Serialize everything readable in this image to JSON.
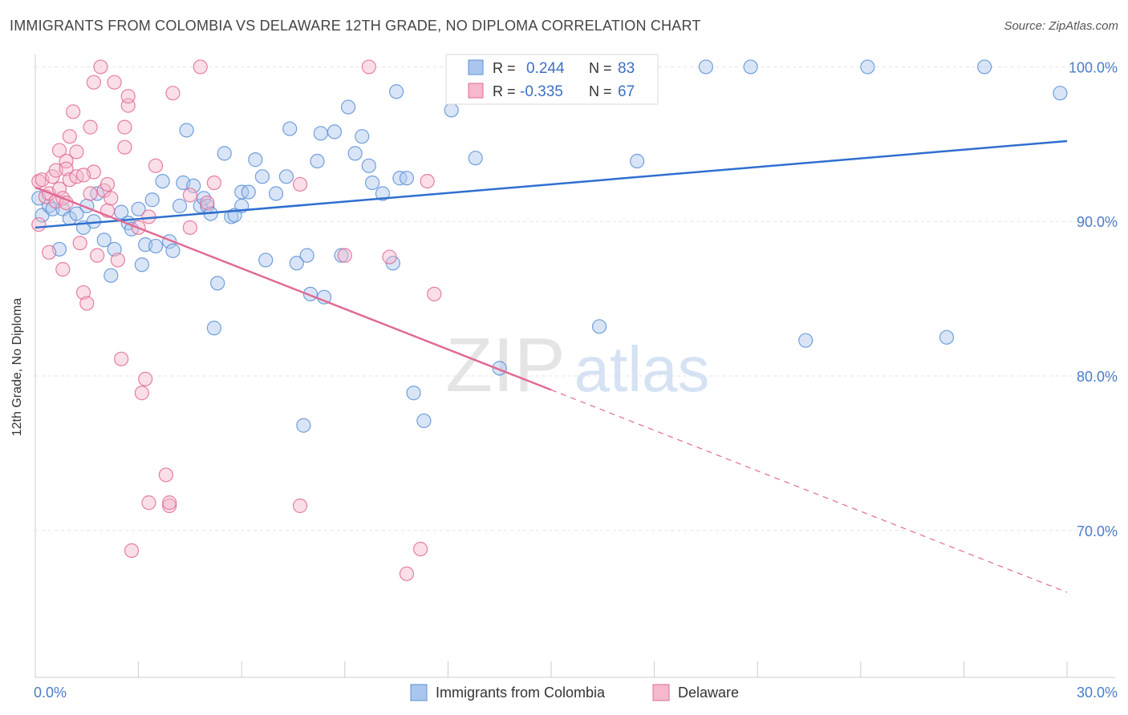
{
  "title": "IMMIGRANTS FROM COLOMBIA VS DELAWARE 12TH GRADE, NO DIPLOMA CORRELATION CHART",
  "source": "Source: ZipAtlas.com",
  "watermark": {
    "zip": "ZIP",
    "atlas": "atlas"
  },
  "colors": {
    "blue": "#5b8fd6",
    "blue_fill": "#aac6ee",
    "pink": "#e06a94",
    "pink_fill": "#f5b8cc",
    "tick_text": "#4a7cc9"
  },
  "chart_data": {
    "type": "scatter",
    "title": "IMMIGRANTS FROM COLOMBIA VS DELAWARE 12TH GRADE, NO DIPLOMA CORRELATION CHART",
    "xlabel": "",
    "ylabel": "12th Grade, No Diploma",
    "xlim": [
      0,
      30
    ],
    "ylim": [
      60.5,
      100.8
    ],
    "x_tick_labels": [
      {
        "value": 0,
        "label": "0.0%"
      },
      {
        "value": 30,
        "label": "30.0%"
      }
    ],
    "y_tick_labels": [
      {
        "value": 100,
        "label": "100.0%"
      },
      {
        "value": 90,
        "label": "90.0%"
      },
      {
        "value": 80,
        "label": "80.0%"
      },
      {
        "value": 70,
        "label": "70.0%"
      }
    ],
    "grid": true,
    "legend_position": "bottom-center",
    "stats_box": [
      {
        "r_label": "R = ",
        "r_value": "0.244",
        "n_label": "N = ",
        "n_value": "83"
      },
      {
        "r_label": "R = ",
        "r_value": "-0.335",
        "n_label": "N = ",
        "n_value": "67"
      }
    ],
    "series": [
      {
        "name": "Immigrants from Colombia",
        "color": "#5b8fd6",
        "trend": {
          "x": [
            0,
            30
          ],
          "y": [
            89.6,
            95.2
          ],
          "dashed_from": null
        },
        "points": [
          [
            0.2,
            90.4
          ],
          [
            0.4,
            91.0
          ],
          [
            0.5,
            90.8
          ],
          [
            0.7,
            88.2
          ],
          [
            0.8,
            90.8
          ],
          [
            1.0,
            90.2
          ],
          [
            1.2,
            90.5
          ],
          [
            1.4,
            89.6
          ],
          [
            1.5,
            91.0
          ],
          [
            1.7,
            90.0
          ],
          [
            1.8,
            91.8
          ],
          [
            2.0,
            88.8
          ],
          [
            2.2,
            86.5
          ],
          [
            2.3,
            88.2
          ],
          [
            2.5,
            90.6
          ],
          [
            2.7,
            89.9
          ],
          [
            2.8,
            89.5
          ],
          [
            3.0,
            90.8
          ],
          [
            3.1,
            87.2
          ],
          [
            3.2,
            88.5
          ],
          [
            3.4,
            91.4
          ],
          [
            3.5,
            88.4
          ],
          [
            3.7,
            92.6
          ],
          [
            3.9,
            88.7
          ],
          [
            4.0,
            88.1
          ],
          [
            4.2,
            91.0
          ],
          [
            4.3,
            92.5
          ],
          [
            4.4,
            95.9
          ],
          [
            4.6,
            92.3
          ],
          [
            4.8,
            91.0
          ],
          [
            4.9,
            91.5
          ],
          [
            5.0,
            91.0
          ],
          [
            5.1,
            90.5
          ],
          [
            5.2,
            83.1
          ],
          [
            5.3,
            86.0
          ],
          [
            5.5,
            94.4
          ],
          [
            5.7,
            90.3
          ],
          [
            5.8,
            90.4
          ],
          [
            6.0,
            91.0
          ],
          [
            6.0,
            91.9
          ],
          [
            6.2,
            91.9
          ],
          [
            6.4,
            94.0
          ],
          [
            6.6,
            92.9
          ],
          [
            6.7,
            87.5
          ],
          [
            7.0,
            91.8
          ],
          [
            7.3,
            92.9
          ],
          [
            7.4,
            96.0
          ],
          [
            7.6,
            87.3
          ],
          [
            7.8,
            76.8
          ],
          [
            7.9,
            87.8
          ],
          [
            8.0,
            85.3
          ],
          [
            8.2,
            93.9
          ],
          [
            8.3,
            95.7
          ],
          [
            8.4,
            85.1
          ],
          [
            8.7,
            95.8
          ],
          [
            8.9,
            87.8
          ],
          [
            9.1,
            97.4
          ],
          [
            9.3,
            94.4
          ],
          [
            9.5,
            95.5
          ],
          [
            9.7,
            93.6
          ],
          [
            9.8,
            92.5
          ],
          [
            10.1,
            91.8
          ],
          [
            10.4,
            87.3
          ],
          [
            10.5,
            98.4
          ],
          [
            10.6,
            92.8
          ],
          [
            10.8,
            92.8
          ],
          [
            11.0,
            78.9
          ],
          [
            11.3,
            77.1
          ],
          [
            12.1,
            97.2
          ],
          [
            12.8,
            94.1
          ],
          [
            13.5,
            80.5
          ],
          [
            14.8,
            99.4
          ],
          [
            15.0,
            99.9
          ],
          [
            16.4,
            83.2
          ],
          [
            17.5,
            93.9
          ],
          [
            19.5,
            100.0
          ],
          [
            20.8,
            100.0
          ],
          [
            22.4,
            82.3
          ],
          [
            24.2,
            100.0
          ],
          [
            26.5,
            82.5
          ],
          [
            27.6,
            100.0
          ],
          [
            29.8,
            98.3
          ],
          [
            0.1,
            91.5
          ]
        ]
      },
      {
        "name": "Delaware",
        "color": "#e06a94",
        "trend": {
          "x": [
            0,
            30
          ],
          "y": [
            92.2,
            66.0
          ],
          "dashed_from": 15.0
        },
        "points": [
          [
            0.1,
            89.8
          ],
          [
            0.1,
            92.6
          ],
          [
            0.2,
            92.7
          ],
          [
            0.3,
            91.6
          ],
          [
            0.4,
            91.8
          ],
          [
            0.4,
            88.0
          ],
          [
            0.5,
            92.9
          ],
          [
            0.6,
            91.3
          ],
          [
            0.6,
            93.3
          ],
          [
            0.7,
            92.1
          ],
          [
            0.7,
            94.6
          ],
          [
            0.8,
            86.9
          ],
          [
            0.8,
            91.5
          ],
          [
            0.9,
            93.9
          ],
          [
            0.9,
            93.4
          ],
          [
            1.0,
            92.7
          ],
          [
            1.0,
            95.5
          ],
          [
            1.1,
            97.1
          ],
          [
            1.2,
            94.5
          ],
          [
            1.2,
            92.9
          ],
          [
            1.3,
            88.6
          ],
          [
            1.4,
            85.4
          ],
          [
            1.5,
            84.7
          ],
          [
            1.6,
            91.8
          ],
          [
            1.6,
            96.1
          ],
          [
            1.7,
            99.0
          ],
          [
            1.7,
            93.2
          ],
          [
            1.8,
            87.8
          ],
          [
            1.9,
            100.0
          ],
          [
            2.0,
            92.0
          ],
          [
            2.1,
            90.7
          ],
          [
            2.1,
            92.4
          ],
          [
            2.2,
            91.5
          ],
          [
            2.3,
            99.0
          ],
          [
            2.4,
            87.5
          ],
          [
            2.5,
            81.1
          ],
          [
            2.6,
            94.8
          ],
          [
            2.6,
            96.1
          ],
          [
            2.7,
            97.5
          ],
          [
            2.7,
            98.1
          ],
          [
            2.8,
            68.7
          ],
          [
            3.0,
            89.6
          ],
          [
            3.1,
            78.9
          ],
          [
            3.2,
            79.8
          ],
          [
            3.3,
            90.3
          ],
          [
            3.5,
            93.6
          ],
          [
            3.8,
            73.6
          ],
          [
            3.9,
            71.6
          ],
          [
            3.9,
            71.8
          ],
          [
            3.3,
            71.8
          ],
          [
            4.0,
            98.3
          ],
          [
            4.5,
            89.6
          ],
          [
            4.8,
            100.0
          ],
          [
            5.0,
            91.2
          ],
          [
            5.2,
            92.5
          ],
          [
            7.7,
            92.4
          ],
          [
            7.7,
            71.6
          ],
          [
            9.0,
            87.8
          ],
          [
            9.7,
            100.0
          ],
          [
            10.3,
            87.7
          ],
          [
            10.8,
            67.2
          ],
          [
            11.2,
            68.8
          ],
          [
            11.4,
            92.6
          ],
          [
            11.6,
            85.3
          ],
          [
            1.4,
            93.0
          ],
          [
            4.5,
            91.7
          ],
          [
            0.9,
            91.2
          ]
        ]
      }
    ]
  }
}
